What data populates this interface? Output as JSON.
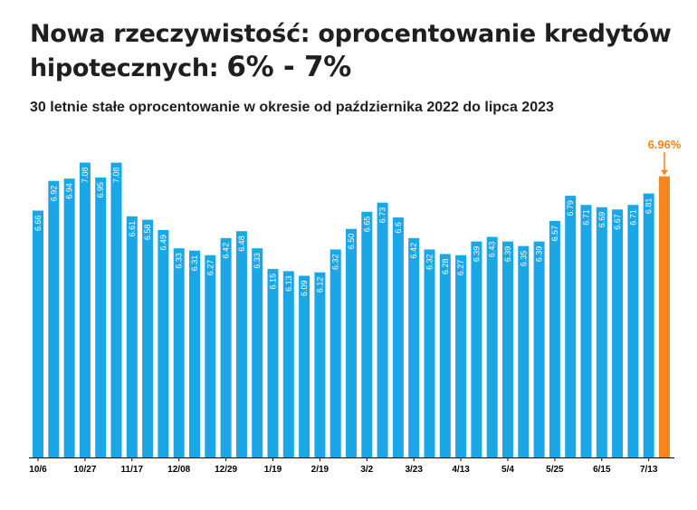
{
  "title_main": "Nowa rzeczywistość: oprocentowanie kredytów hipotecznych:",
  "title_highlight": "6% - 7%",
  "subtitle": "30 letnie stałe oprocentowanie w okresie od października 2022 do lipca 2023",
  "colors": {
    "bar": "#1ba6e6",
    "highlight": "#f5851f",
    "axis": "#000000",
    "label": "#ffffff"
  },
  "chart_data": {
    "type": "bar",
    "title": "",
    "xlabel": "",
    "ylabel": "",
    "ylim": [
      4.5,
      7.1
    ],
    "grid": false,
    "x_tick_labels": [
      "10/6",
      "10/27",
      "11/17",
      "12/08",
      "12/29",
      "1/19",
      "2/19",
      "3/2",
      "3/23",
      "4/13",
      "5/4",
      "5/25",
      "6/15",
      "7/13"
    ],
    "values": [
      6.66,
      6.92,
      6.94,
      7.08,
      6.95,
      7.08,
      6.61,
      6.58,
      6.49,
      6.33,
      6.31,
      6.27,
      6.42,
      6.48,
      6.33,
      6.15,
      6.13,
      6.09,
      6.12,
      6.32,
      6.5,
      6.65,
      6.73,
      6.6,
      6.42,
      6.32,
      6.28,
      6.27,
      6.39,
      6.43,
      6.39,
      6.35,
      6.39,
      6.57,
      6.79,
      6.71,
      6.69,
      6.67,
      6.71,
      6.81,
      6.96
    ],
    "value_labels": [
      "6.66",
      "6.92",
      "6.94",
      "7.08",
      "6.95",
      "7.08",
      "6.61",
      "6.58",
      "6.49",
      "6.33",
      "6.31",
      "6.27",
      "6.42",
      "6.48",
      "6.33",
      "6.15",
      "6.13",
      "6.09",
      "6.12",
      "6.32",
      "6.50",
      "6.65",
      "6.73",
      "6.6",
      "6.42",
      "6.32",
      "6.28",
      "6.27",
      "6.39",
      "6.43",
      "6.39",
      "6.35",
      "6.39",
      "6.57",
      "6.79",
      "6.71",
      "6.69",
      "6.67",
      "6.71",
      "6.81",
      ""
    ],
    "highlight_index": 40,
    "highlight_label": "6.96%"
  }
}
